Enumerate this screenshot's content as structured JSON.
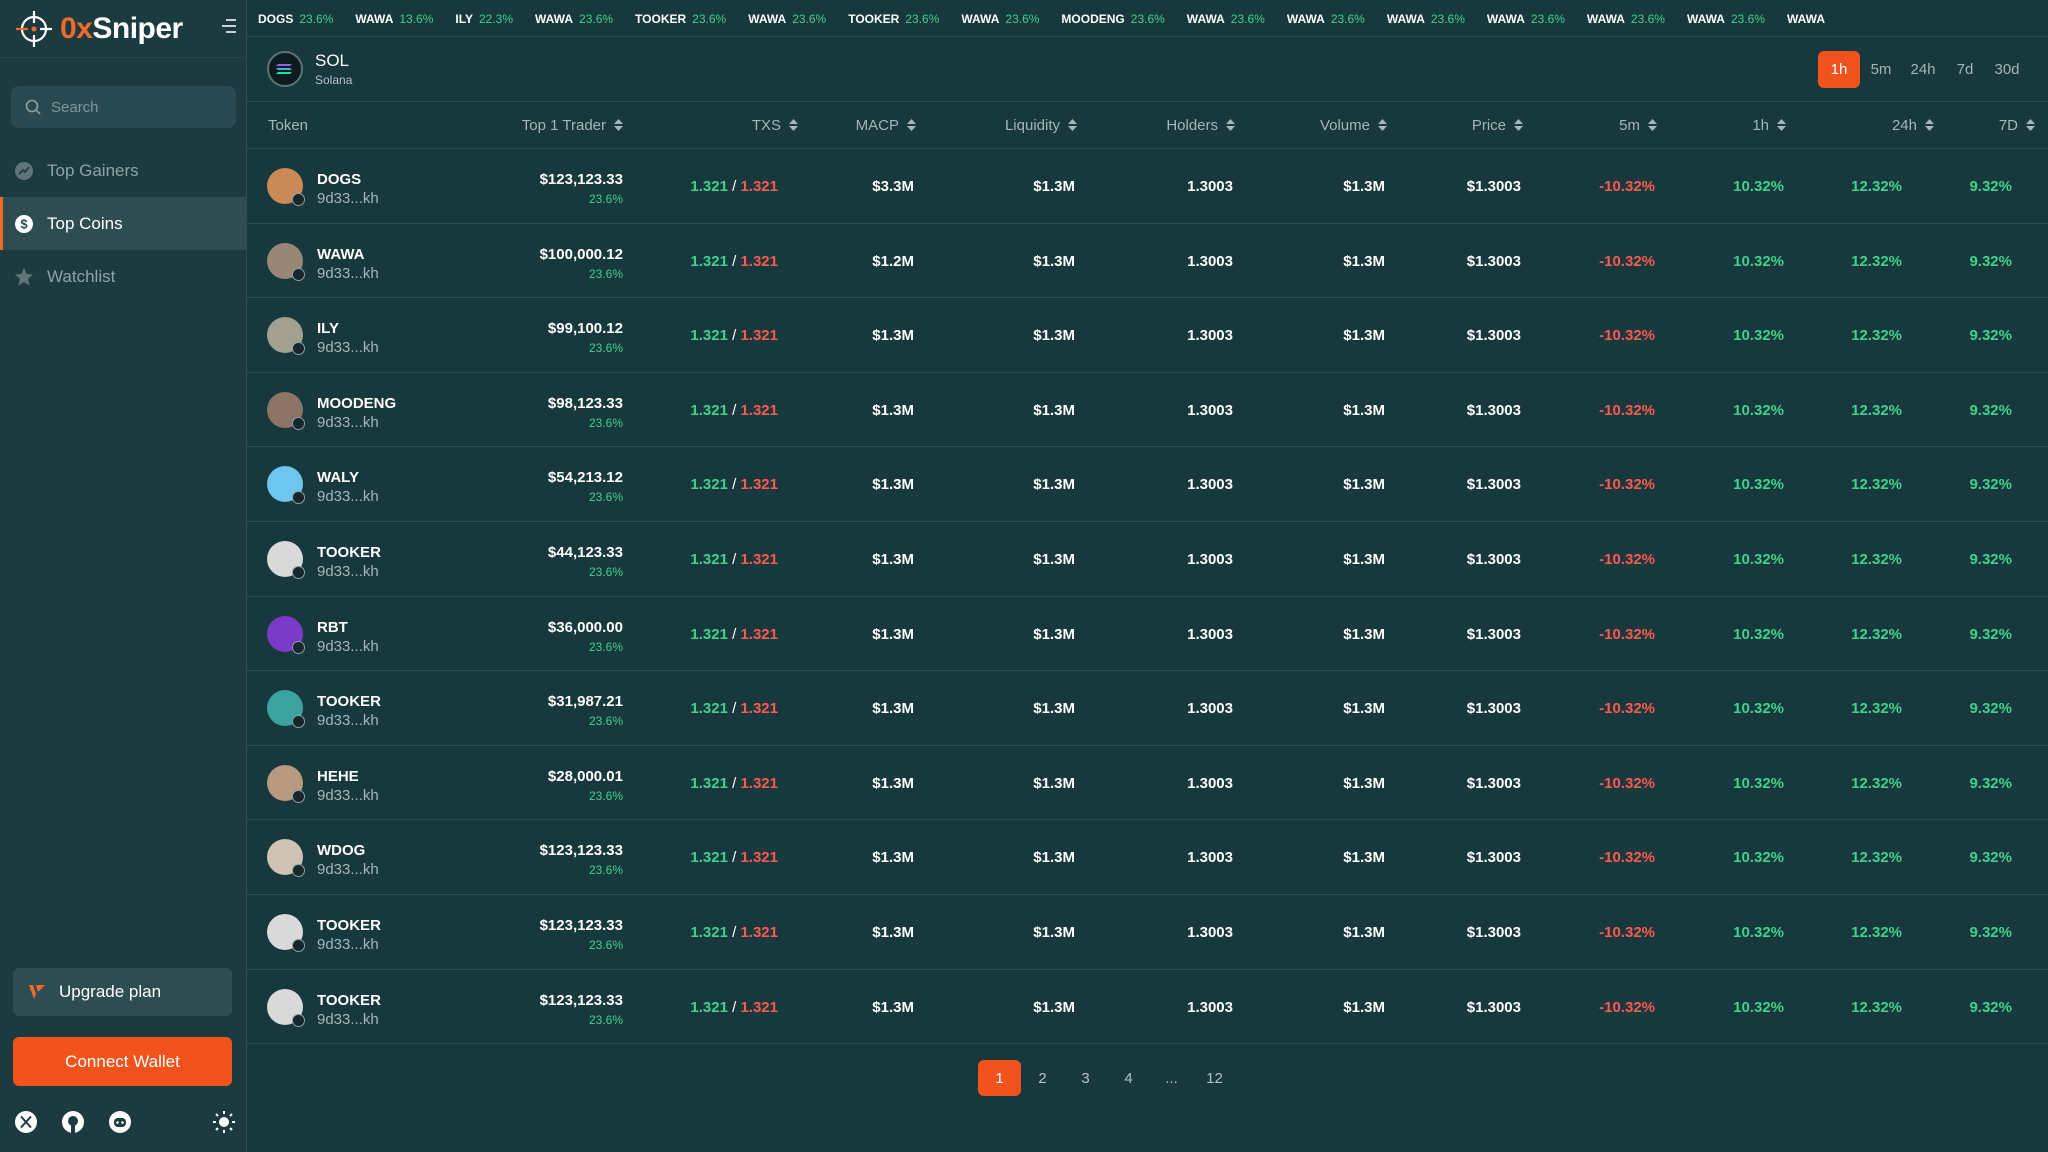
{
  "brand": {
    "prefix": "0x",
    "name": "Sniper"
  },
  "search": {
    "placeholder": "Search"
  },
  "nav": [
    {
      "label": "Top Gainers",
      "icon": "chart-trend-icon",
      "active": false
    },
    {
      "label": "Top Coins",
      "icon": "dollar-coin-icon",
      "active": true
    },
    {
      "label": "Watchlist",
      "icon": "star-icon",
      "active": false
    }
  ],
  "upgrade_label": "Upgrade plan",
  "connect_label": "Connect Wallet",
  "ticker": [
    {
      "name": "DOGS",
      "value": "23.6%"
    },
    {
      "name": "WAWA",
      "value": "13.6%"
    },
    {
      "name": "ILY",
      "value": "22.3%"
    },
    {
      "name": "WAWA",
      "value": "23.6%"
    },
    {
      "name": "TOOKER",
      "value": "23.6%"
    },
    {
      "name": "WAWA",
      "value": "23.6%"
    },
    {
      "name": "TOOKER",
      "value": "23.6%"
    },
    {
      "name": "WAWA",
      "value": "23.6%"
    },
    {
      "name": "MOODENG",
      "value": "23.6%"
    },
    {
      "name": "WAWA",
      "value": "23.6%"
    },
    {
      "name": "WAWA",
      "value": "23.6%"
    },
    {
      "name": "WAWA",
      "value": "23.6%"
    },
    {
      "name": "WAWA",
      "value": "23.6%"
    },
    {
      "name": "WAWA",
      "value": "23.6%"
    },
    {
      "name": "WAWA",
      "value": "23.6%"
    },
    {
      "name": "WAWA",
      "value": ""
    }
  ],
  "chain": {
    "symbol": "SOL",
    "name": "Solana"
  },
  "timeframes": [
    {
      "label": "1h",
      "active": true
    },
    {
      "label": "5m",
      "active": false
    },
    {
      "label": "24h",
      "active": false
    },
    {
      "label": "7d",
      "active": false
    },
    {
      "label": "30d",
      "active": false
    }
  ],
  "columns": {
    "token": "Token",
    "top_trader": "Top 1 Trader",
    "txs": "TXS",
    "macp": "MACP",
    "liquidity": "Liquidity",
    "holders": "Holders",
    "volume": "Volume",
    "price": "Price",
    "c5m": "5m",
    "c1h": "1h",
    "c24h": "24h",
    "c7d": "7D"
  },
  "rows": [
    {
      "name": "DOGS",
      "address": "9d33...kh",
      "trader": "$123,123.33",
      "trader_pct": "23.6%",
      "txs_buy": "1.321",
      "txs_sell": "1.321",
      "macp": "$3.3M",
      "liquidity": "$1.3M",
      "holders": "1.3003",
      "volume": "$1.3M",
      "price": "$1.3003",
      "c5m": "-10.32%",
      "c1h": "10.32%",
      "c24h": "12.32%",
      "c7d": "9.32%",
      "avatar_color": "#c98a58"
    },
    {
      "name": "WAWA",
      "address": "9d33...kh",
      "trader": "$100,000.12",
      "trader_pct": "23.6%",
      "txs_buy": "1.321",
      "txs_sell": "1.321",
      "macp": "$1.2M",
      "liquidity": "$1.3M",
      "holders": "1.3003",
      "volume": "$1.3M",
      "price": "$1.3003",
      "c5m": "-10.32%",
      "c1h": "10.32%",
      "c24h": "12.32%",
      "c7d": "9.32%",
      "avatar_color": "#9a8676"
    },
    {
      "name": "ILY",
      "address": "9d33...kh",
      "trader": "$99,100.12",
      "trader_pct": "23.6%",
      "txs_buy": "1.321",
      "txs_sell": "1.321",
      "macp": "$1.3M",
      "liquidity": "$1.3M",
      "holders": "1.3003",
      "volume": "$1.3M",
      "price": "$1.3003",
      "c5m": "-10.32%",
      "c1h": "10.32%",
      "c24h": "12.32%",
      "c7d": "9.32%",
      "avatar_color": "#a3a08f"
    },
    {
      "name": "MOODENG",
      "address": "9d33...kh",
      "trader": "$98,123.33",
      "trader_pct": "23.6%",
      "txs_buy": "1.321",
      "txs_sell": "1.321",
      "macp": "$1.3M",
      "liquidity": "$1.3M",
      "holders": "1.3003",
      "volume": "$1.3M",
      "price": "$1.3003",
      "c5m": "-10.32%",
      "c1h": "10.32%",
      "c24h": "12.32%",
      "c7d": "9.32%",
      "avatar_color": "#8d7566"
    },
    {
      "name": "WALY",
      "address": "9d33...kh",
      "trader": "$54,213.12",
      "trader_pct": "23.6%",
      "txs_buy": "1.321",
      "txs_sell": "1.321",
      "macp": "$1.3M",
      "liquidity": "$1.3M",
      "holders": "1.3003",
      "volume": "$1.3M",
      "price": "$1.3003",
      "c5m": "-10.32%",
      "c1h": "10.32%",
      "c24h": "12.32%",
      "c7d": "9.32%",
      "avatar_color": "#6ec6ee"
    },
    {
      "name": "TOOKER",
      "address": "9d33...kh",
      "trader": "$44,123.33",
      "trader_pct": "23.6%",
      "txs_buy": "1.321",
      "txs_sell": "1.321",
      "macp": "$1.3M",
      "liquidity": "$1.3M",
      "holders": "1.3003",
      "volume": "$1.3M",
      "price": "$1.3003",
      "c5m": "-10.32%",
      "c1h": "10.32%",
      "c24h": "12.32%",
      "c7d": "9.32%",
      "avatar_color": "#d9d9d9"
    },
    {
      "name": "RBT",
      "address": "9d33...kh",
      "trader": "$36,000.00",
      "trader_pct": "23.6%",
      "txs_buy": "1.321",
      "txs_sell": "1.321",
      "macp": "$1.3M",
      "liquidity": "$1.3M",
      "holders": "1.3003",
      "volume": "$1.3M",
      "price": "$1.3003",
      "c5m": "-10.32%",
      "c1h": "10.32%",
      "c24h": "12.32%",
      "c7d": "9.32%",
      "avatar_color": "#7a3cc8"
    },
    {
      "name": "TOOKER",
      "address": "9d33...kh",
      "trader": "$31,987.21",
      "trader_pct": "23.6%",
      "txs_buy": "1.321",
      "txs_sell": "1.321",
      "macp": "$1.3M",
      "liquidity": "$1.3M",
      "holders": "1.3003",
      "volume": "$1.3M",
      "price": "$1.3003",
      "c5m": "-10.32%",
      "c1h": "10.32%",
      "c24h": "12.32%",
      "c7d": "9.32%",
      "avatar_color": "#3aa3a0"
    },
    {
      "name": "HEHE",
      "address": "9d33...kh",
      "trader": "$28,000.01",
      "trader_pct": "23.6%",
      "txs_buy": "1.321",
      "txs_sell": "1.321",
      "macp": "$1.3M",
      "liquidity": "$1.3M",
      "holders": "1.3003",
      "volume": "$1.3M",
      "price": "$1.3003",
      "c5m": "-10.32%",
      "c1h": "10.32%",
      "c24h": "12.32%",
      "c7d": "9.32%",
      "avatar_color": "#b89a80"
    },
    {
      "name": "WDOG",
      "address": "9d33...kh",
      "trader": "$123,123.33",
      "trader_pct": "23.6%",
      "txs_buy": "1.321",
      "txs_sell": "1.321",
      "macp": "$1.3M",
      "liquidity": "$1.3M",
      "holders": "1.3003",
      "volume": "$1.3M",
      "price": "$1.3003",
      "c5m": "-10.32%",
      "c1h": "10.32%",
      "c24h": "12.32%",
      "c7d": "9.32%",
      "avatar_color": "#cfc3b4"
    },
    {
      "name": "TOOKER",
      "address": "9d33...kh",
      "trader": "$123,123.33",
      "trader_pct": "23.6%",
      "txs_buy": "1.321",
      "txs_sell": "1.321",
      "macp": "$1.3M",
      "liquidity": "$1.3M",
      "holders": "1.3003",
      "volume": "$1.3M",
      "price": "$1.3003",
      "c5m": "-10.32%",
      "c1h": "10.32%",
      "c24h": "12.32%",
      "c7d": "9.32%",
      "avatar_color": "#d9d9d9"
    },
    {
      "name": "TOOKER",
      "address": "9d33...kh",
      "trader": "$123,123.33",
      "trader_pct": "23.6%",
      "txs_buy": "1.321",
      "txs_sell": "1.321",
      "macp": "$1.3M",
      "liquidity": "$1.3M",
      "holders": "1.3003",
      "volume": "$1.3M",
      "price": "$1.3003",
      "c5m": "-10.32%",
      "c1h": "10.32%",
      "c24h": "12.32%",
      "c7d": "9.32%",
      "avatar_color": "#d9d9d9"
    }
  ],
  "pagination": [
    {
      "label": "1",
      "active": true
    },
    {
      "label": "2",
      "active": false
    },
    {
      "label": "3",
      "active": false
    },
    {
      "label": "4",
      "active": false
    },
    {
      "label": "...",
      "active": false
    },
    {
      "label": "12",
      "active": false
    }
  ],
  "colors": {
    "accent": "#f0531c",
    "positive": "#3ed28a",
    "negative": "#ff5a4f",
    "background": "#17383d"
  }
}
